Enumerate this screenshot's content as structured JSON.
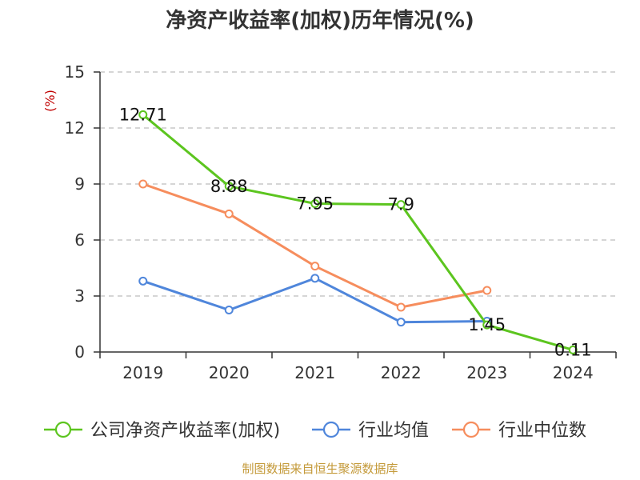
{
  "chart_data": {
    "type": "line",
    "title": "净资产收益率(加权)历年情况(%)",
    "ylabel": "(%)",
    "xlabel": "",
    "categories": [
      "2019",
      "2020",
      "2021",
      "2022",
      "2023",
      "2024"
    ],
    "ylim": [
      0,
      15
    ],
    "yticks": [
      0,
      3,
      6,
      9,
      12,
      15
    ],
    "grid": true,
    "legend_position": "bottom",
    "series": [
      {
        "name": "公司净资产收益率(加权)",
        "color": "#5cc51f",
        "values": [
          12.71,
          8.88,
          7.95,
          7.9,
          1.45,
          0.11
        ],
        "labels": [
          "12.71",
          "8.88",
          "7.95",
          "7.9",
          "1.45",
          "0.11"
        ]
      },
      {
        "name": "行业均值",
        "color": "#4f86db",
        "values": [
          3.8,
          2.25,
          3.95,
          1.6,
          1.65,
          null
        ]
      },
      {
        "name": "行业中位数",
        "color": "#f68d5d",
        "values": [
          9.0,
          7.4,
          4.6,
          2.4,
          3.3,
          null
        ]
      }
    ],
    "source": "制图数据来自恒生聚源数据库",
    "unit_color": "#c00000",
    "source_color": "#c49a3a"
  }
}
